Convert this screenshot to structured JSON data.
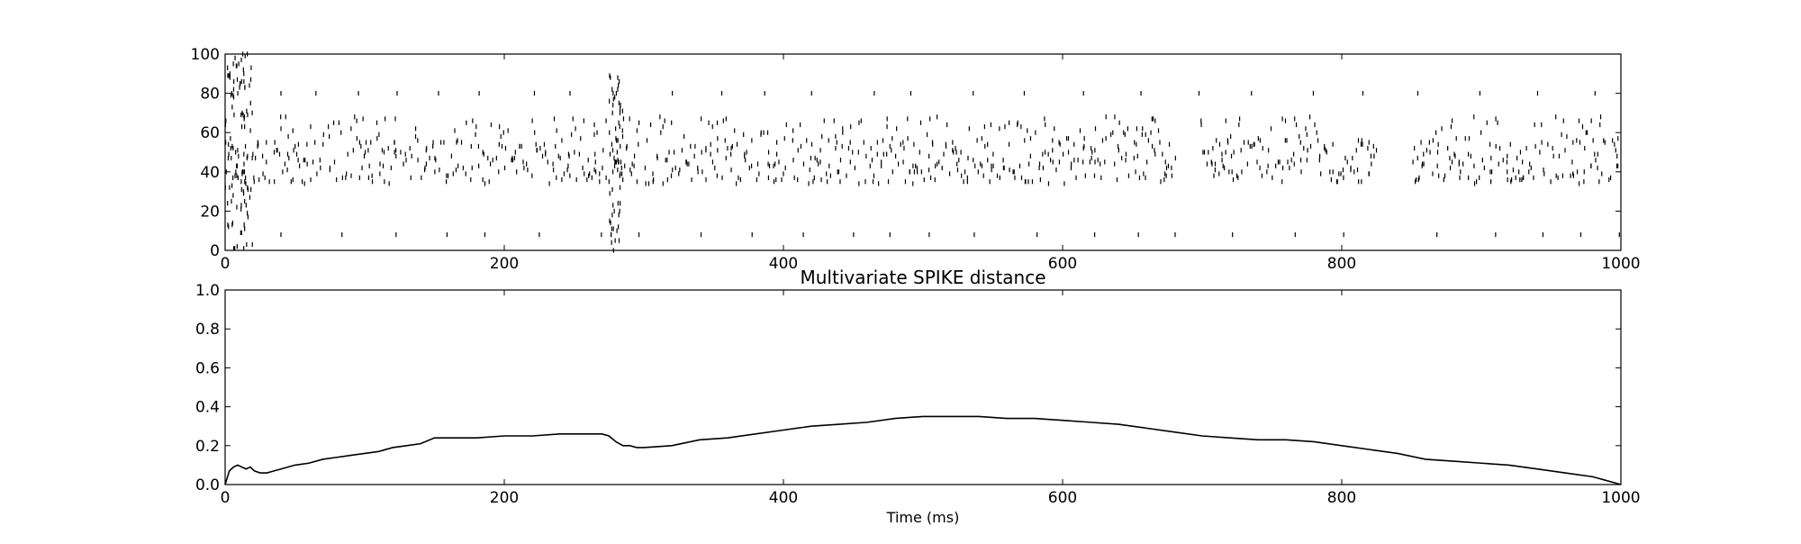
{
  "chart_data": [
    {
      "type": "scatter",
      "subtype": "raster",
      "title": "",
      "xlabel": "",
      "ylabel": "",
      "xlim": [
        0,
        1000
      ],
      "ylim": [
        0,
        100
      ],
      "xticks": [
        0,
        200,
        400,
        600,
        800,
        1000
      ],
      "yticks": [
        0,
        20,
        40,
        60,
        80,
        100
      ],
      "grid": false,
      "marker": "|",
      "color": "#000000",
      "description_units": "x = spike time (ms), y = neuron index",
      "bursts": [
        {
          "start": 0,
          "end": 20,
          "neurons_min": 0,
          "neurons_max": 100
        },
        {
          "start": 275,
          "end": 285,
          "neurons_min": 0,
          "neurons_max": 90
        }
      ],
      "active_band": {
        "neurons_min": 30,
        "neurons_max": 68,
        "sparse_neurons": [
          8,
          80
        ]
      },
      "silent_intervals": [
        [
          682,
          697
        ],
        [
          825,
          848
        ]
      ]
    },
    {
      "type": "line",
      "title": "Multivariate SPIKE distance",
      "xlabel": "Time (ms)",
      "ylabel": "",
      "xlim": [
        0,
        1000
      ],
      "ylim": [
        0,
        1
      ],
      "xticks": [
        0,
        200,
        400,
        600,
        800,
        1000
      ],
      "yticks": [
        "0.0",
        "0.2",
        "0.4",
        "0.6",
        "0.8",
        "1.0"
      ],
      "grid": false,
      "color": "#000000",
      "x": [
        0,
        3,
        6,
        9,
        12,
        15,
        18,
        21,
        25,
        30,
        35,
        40,
        50,
        60,
        70,
        80,
        90,
        100,
        110,
        120,
        130,
        140,
        150,
        160,
        180,
        200,
        220,
        240,
        260,
        270,
        275,
        280,
        285,
        290,
        295,
        300,
        320,
        340,
        360,
        380,
        400,
        420,
        440,
        460,
        480,
        500,
        520,
        540,
        560,
        580,
        600,
        620,
        640,
        660,
        680,
        700,
        720,
        740,
        760,
        780,
        800,
        820,
        840,
        860,
        880,
        900,
        920,
        940,
        960,
        980,
        1000
      ],
      "y": [
        0.0,
        0.07,
        0.09,
        0.1,
        0.09,
        0.08,
        0.09,
        0.07,
        0.06,
        0.06,
        0.07,
        0.08,
        0.1,
        0.11,
        0.13,
        0.14,
        0.15,
        0.16,
        0.17,
        0.19,
        0.2,
        0.21,
        0.24,
        0.24,
        0.24,
        0.25,
        0.25,
        0.26,
        0.26,
        0.26,
        0.25,
        0.22,
        0.2,
        0.2,
        0.19,
        0.19,
        0.2,
        0.23,
        0.24,
        0.26,
        0.28,
        0.3,
        0.31,
        0.32,
        0.34,
        0.35,
        0.35,
        0.35,
        0.34,
        0.34,
        0.33,
        0.32,
        0.31,
        0.29,
        0.27,
        0.25,
        0.24,
        0.23,
        0.23,
        0.22,
        0.2,
        0.18,
        0.16,
        0.13,
        0.12,
        0.11,
        0.1,
        0.08,
        0.06,
        0.04,
        0.0
      ]
    }
  ]
}
